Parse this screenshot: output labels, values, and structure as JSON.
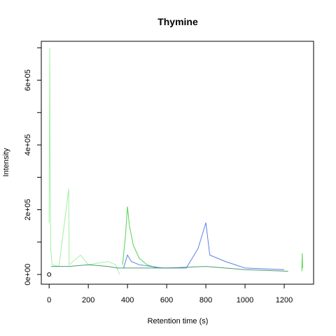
{
  "chart_data": {
    "type": "line",
    "title": "Thymine",
    "xlabel": "Retention time (s)",
    "ylabel": "Intensity",
    "xlim": [
      -40,
      1350
    ],
    "ylim": [
      -30000,
      720000
    ],
    "x_ticks": [
      0,
      200,
      400,
      600,
      800,
      1000,
      1200
    ],
    "x_tick_labels": [
      "0",
      "200",
      "400",
      "600",
      "800",
      "1000",
      "1200"
    ],
    "y_ticks": [
      0,
      100000,
      200000,
      300000,
      400000,
      500000,
      600000,
      700000
    ],
    "y_tick_labels": [
      "0e+00",
      "",
      "2e+05",
      "",
      "4e+05",
      "",
      "6e+05",
      ""
    ],
    "grid": false,
    "legend": "none",
    "series_colors": [
      "#32cd32",
      "#90ee90",
      "#4169e1",
      "#8a8adf",
      "#2e8b57"
    ],
    "series": [
      {
        "color": "#90ee90",
        "points": [
          [
            0,
            160000
          ],
          [
            3,
            700000
          ],
          [
            5,
            380000
          ],
          [
            8,
            80000
          ],
          [
            15,
            30000
          ],
          [
            50,
            25000
          ],
          [
            100,
            265000
          ],
          [
            102,
            30000
          ],
          [
            160,
            60000
          ],
          [
            200,
            30000
          ],
          [
            300,
            40000
          ],
          [
            340,
            30000
          ],
          [
            360,
            0
          ]
        ]
      },
      {
        "color": "#32cd32",
        "points": [
          [
            375,
            30000
          ],
          [
            390,
            120000
          ],
          [
            400,
            210000
          ],
          [
            410,
            150000
          ],
          [
            430,
            90000
          ],
          [
            460,
            50000
          ],
          [
            500,
            30000
          ],
          [
            550,
            20000
          ]
        ]
      },
      {
        "color": "#4169e1",
        "points": [
          [
            380,
            20000
          ],
          [
            400,
            60000
          ],
          [
            420,
            40000
          ],
          [
            460,
            30000
          ],
          [
            580,
            20000
          ],
          [
            700,
            20000
          ],
          [
            760,
            80000
          ],
          [
            800,
            160000
          ],
          [
            820,
            60000
          ],
          [
            900,
            40000
          ],
          [
            1000,
            20000
          ],
          [
            1200,
            15000
          ]
        ]
      },
      {
        "color": "#2e8b57",
        "points": [
          [
            10,
            25000
          ],
          [
            100,
            25000
          ],
          [
            200,
            30000
          ],
          [
            300,
            25000
          ],
          [
            350,
            20000
          ],
          [
            600,
            20000
          ],
          [
            800,
            25000
          ],
          [
            1000,
            15000
          ],
          [
            1220,
            10000
          ]
        ]
      },
      {
        "color": "#32cd32",
        "points": [
          [
            1290,
            10000
          ],
          [
            1292,
            65000
          ],
          [
            1294,
            20000
          ]
        ]
      }
    ],
    "marker": {
      "x": 0,
      "y": 0
    }
  }
}
